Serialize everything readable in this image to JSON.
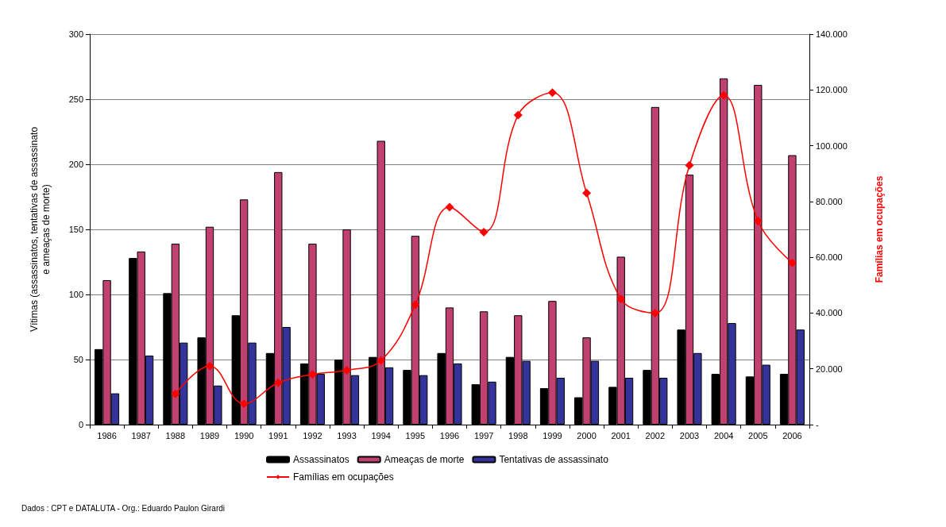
{
  "chart_data": {
    "type": "bar",
    "ylabel": "Vítimas (assassinatos, tentativas de assassinato\ne ameaças de morte)",
    "y2label": "Famílias em ocupações",
    "categories": [
      "1986",
      "1987",
      "1988",
      "1989",
      "1990",
      "1991",
      "1992",
      "1993",
      "1994",
      "1995",
      "1996",
      "1997",
      "1998",
      "1999",
      "2000",
      "2001",
      "2002",
      "2003",
      "2004",
      "2005",
      "2006"
    ],
    "series": [
      {
        "name": "Assassinatos",
        "color": "#000000",
        "values": [
          58,
          128,
          101,
          67,
          84,
          55,
          47,
          50,
          52,
          42,
          55,
          31,
          52,
          28,
          21,
          29,
          42,
          73,
          39,
          37,
          39
        ]
      },
      {
        "name": "Ameaças de morte",
        "color": "#c0406f",
        "values": [
          111,
          133,
          139,
          152,
          173,
          194,
          139,
          150,
          218,
          145,
          90,
          87,
          84,
          95,
          67,
          129,
          244,
          192,
          266,
          261,
          207
        ]
      },
      {
        "name": "Tentativas de assassinato",
        "color": "#333399",
        "values": [
          24,
          53,
          63,
          30,
          63,
          75,
          39,
          38,
          44,
          38,
          47,
          33,
          49,
          36,
          49,
          36,
          36,
          55,
          78,
          46,
          73
        ]
      },
      {
        "name": "Famílias em ocupações",
        "type": "line",
        "axis": "y2",
        "color": "#ff0000",
        "marker": "diamond",
        "values": [
          null,
          null,
          11000,
          21000,
          7500,
          15000,
          18000,
          19500,
          23000,
          43000,
          78000,
          69000,
          111000,
          119000,
          83000,
          45000,
          40000,
          93000,
          118000,
          73000,
          58000
        ]
      }
    ],
    "ylim": [
      0,
      300
    ],
    "yticks": [
      0,
      50,
      100,
      150,
      200,
      250,
      300
    ],
    "y2lim": [
      0,
      140000
    ],
    "y2ticks": [
      {
        "value": 0,
        "label": "-"
      },
      {
        "value": 20000,
        "label": "20.000"
      },
      {
        "value": 40000,
        "label": "40.000"
      },
      {
        "value": 60000,
        "label": "60.000"
      },
      {
        "value": 80000,
        "label": "80.000"
      },
      {
        "value": 100000,
        "label": "100.000"
      },
      {
        "value": 120000,
        "label": "120.000"
      },
      {
        "value": 140000,
        "label": "140.000"
      }
    ],
    "grid": "y",
    "legend": "bottom",
    "annotations": [
      "Dados : CPT e DATALUTA - Org.: Eduardo Paulon Girardi"
    ]
  }
}
